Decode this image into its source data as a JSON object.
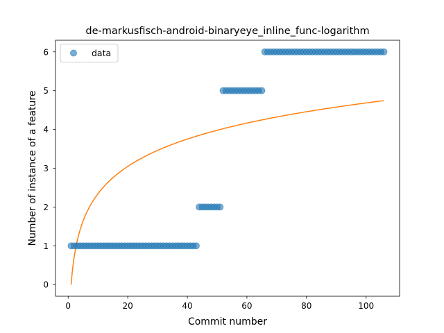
{
  "chart_data": {
    "type": "scatter",
    "title": "de-markusfisch-android-binaryeye_inline_func-logarithm",
    "xlabel": "Commit number",
    "ylabel": "Number of instance of a feature",
    "xlim": [
      -4.25,
      111.25
    ],
    "ylim": [
      -0.3,
      6.3
    ],
    "xticks": [
      0,
      20,
      40,
      60,
      80,
      100
    ],
    "yticks": [
      0,
      1,
      2,
      3,
      4,
      5,
      6
    ],
    "grid": false,
    "legend": {
      "position": "top-left",
      "entries": [
        "data"
      ]
    },
    "series": [
      {
        "name": "data",
        "kind": "scatter",
        "color": "#1f77b4",
        "segments": [
          {
            "x_start": 1,
            "x_end": 43,
            "y": 1
          },
          {
            "x_start": 44,
            "x_end": 51,
            "y": 2
          },
          {
            "x_start": 52,
            "x_end": 65,
            "y": 5
          },
          {
            "x_start": 66,
            "x_end": 106,
            "y": 6
          }
        ]
      },
      {
        "kind": "line",
        "color": "#ff7f0e",
        "formula": "y = 1.017 * ln(x)",
        "x_range": [
          1,
          106
        ],
        "points": [
          [
            1,
            0
          ],
          [
            2,
            0.7
          ],
          [
            3,
            1.12
          ],
          [
            5,
            1.64
          ],
          [
            10,
            2.34
          ],
          [
            20,
            3.05
          ],
          [
            40,
            3.75
          ],
          [
            60,
            4.16
          ],
          [
            80,
            4.46
          ],
          [
            106,
            4.74
          ]
        ]
      }
    ]
  }
}
